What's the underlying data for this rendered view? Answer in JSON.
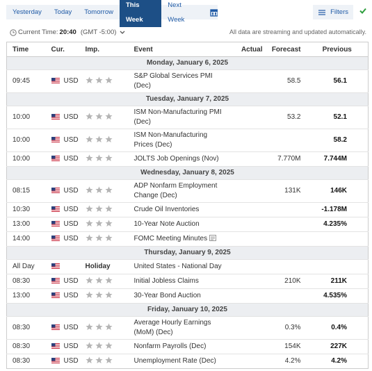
{
  "tabs": [
    "Yesterday",
    "Today",
    "Tomorrow",
    "This Week",
    "Next Week"
  ],
  "active_tab": "This Week",
  "filters": "Filters",
  "current_time": {
    "label": "Current Time:",
    "time": "20:40",
    "zone": "(GMT -5:00)"
  },
  "notice": "All data are streaming and updated automatically.",
  "table": {
    "headers": [
      "Time",
      "Cur.",
      "Imp.",
      "Event",
      "Actual",
      "Forecast",
      "Previous"
    ],
    "days": [
      {
        "title": "Monday, January 6, 2025",
        "rows": [
          {
            "time": "09:45",
            "currency": "USD",
            "event": "S&P Global Services PMI (Dec)",
            "forecast": "58.5",
            "previous": "56.1"
          }
        ]
      },
      {
        "title": "Tuesday, January 7, 2025",
        "rows": [
          {
            "time": "10:00",
            "currency": "USD",
            "event": "ISM Non-Manufacturing PMI (Dec)",
            "forecast": "53.2",
            "previous": "52.1"
          },
          {
            "time": "10:00",
            "currency": "USD",
            "event": "ISM Non-Manufacturing Prices (Dec)",
            "previous": "58.2"
          },
          {
            "time": "10:00",
            "currency": "USD",
            "event": "JOLTS Job Openings (Nov)",
            "forecast": "7.770M",
            "previous": "7.744M"
          }
        ]
      },
      {
        "title": "Wednesday, January 8, 2025",
        "rows": [
          {
            "time": "08:15",
            "currency": "USD",
            "event": "ADP Nonfarm Employment Change (Dec)",
            "forecast": "131K",
            "previous": "146K"
          },
          {
            "time": "10:30",
            "currency": "USD",
            "event": "Crude Oil Inventories",
            "previous": "-1.178M"
          },
          {
            "time": "13:00",
            "currency": "USD",
            "event": "10-Year Note Auction",
            "previous": "4.235%"
          },
          {
            "time": "14:00",
            "currency": "USD",
            "event": "FOMC Meeting Minutes"
          }
        ]
      },
      {
        "title": "Thursday, January 9, 2025",
        "rows": [
          {
            "time": "All Day",
            "importance": "Holiday",
            "event": "United States - National Day"
          },
          {
            "time": "08:30",
            "currency": "USD",
            "event": "Initial Jobless Claims",
            "forecast": "210K",
            "previous": "211K"
          },
          {
            "time": "13:00",
            "currency": "USD",
            "event": "30-Year Bond Auction",
            "previous": "4.535%"
          }
        ]
      },
      {
        "title": "Friday, January 10, 2025",
        "rows": [
          {
            "time": "08:30",
            "currency": "USD",
            "event": "Average Hourly Earnings (MoM) (Dec)",
            "forecast": "0.3%",
            "previous": "0.4%"
          },
          {
            "time": "08:30",
            "currency": "USD",
            "event": "Nonfarm Payrolls (Dec)",
            "forecast": "154K",
            "previous": "227K"
          },
          {
            "time": "08:30",
            "currency": "USD",
            "event": "Unemployment Rate (Dec)",
            "forecast": "4.2%",
            "previous": "4.2%"
          }
        ]
      }
    ]
  }
}
